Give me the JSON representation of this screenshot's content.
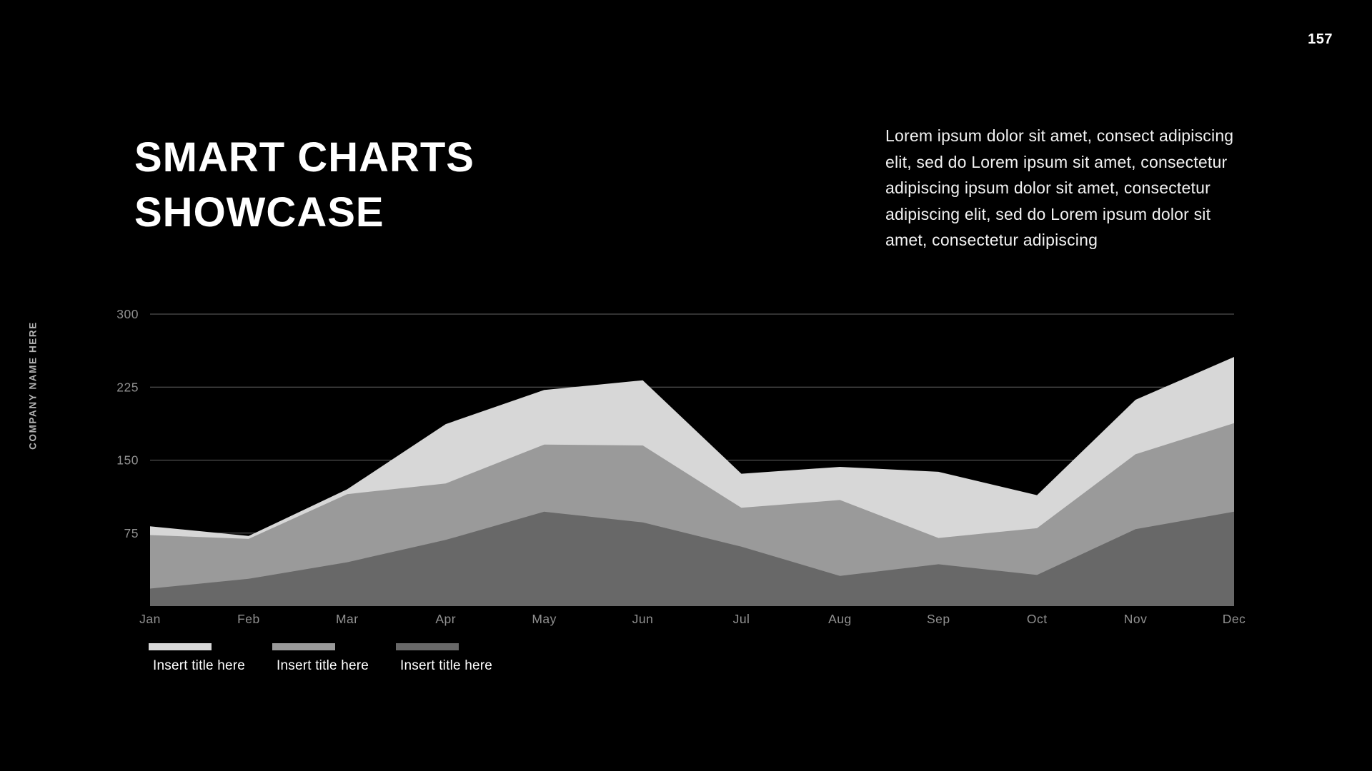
{
  "page": {
    "number": "157"
  },
  "sidebar": {
    "company_name": "COMPANY NAME HERE"
  },
  "header": {
    "title_line1": "SMART CHARTS",
    "title_line2": "SHOWCASE",
    "description": "Lorem ipsum dolor sit amet, consect adipiscing elit, sed do Lorem ipsum sit amet, consectetur adipiscing ipsum dolor sit amet, consectetur adipiscing elit, sed do Lorem ipsum dolor sit amet, consectetur adipiscing"
  },
  "chart_data": {
    "type": "area",
    "title": "",
    "xlabel": "",
    "ylabel": "",
    "categories": [
      "Jan",
      "Feb",
      "Mar",
      "Apr",
      "May",
      "Jun",
      "Jul",
      "Aug",
      "Sep",
      "Oct",
      "Nov",
      "Dec"
    ],
    "series": [
      {
        "name": "Insert title here",
        "color": "#d7d7d7",
        "values": [
          82,
          72,
          120,
          187,
          222,
          232,
          136,
          143,
          138,
          114,
          212,
          256
        ]
      },
      {
        "name": "Insert title here",
        "color": "#9a9a9a",
        "values": [
          73,
          69,
          115,
          126,
          166,
          165,
          101,
          109,
          70,
          80,
          156,
          188
        ]
      },
      {
        "name": "Insert title here",
        "color": "#686868",
        "values": [
          18,
          28,
          45,
          68,
          97,
          86,
          61,
          31,
          43,
          32,
          79,
          97
        ]
      }
    ],
    "ylim": [
      0,
      300
    ],
    "yticks": [
      75,
      150,
      225,
      300
    ],
    "grid": true,
    "gridline_color": "#858585",
    "axis_label_color": "#919191",
    "background_color": "#000000",
    "legend_position": "bottom-left"
  }
}
